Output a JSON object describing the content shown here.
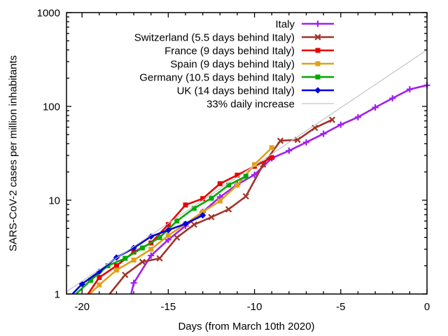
{
  "chart_data": {
    "type": "line",
    "title": "",
    "xlabel": "Days (from March 10th 2020)",
    "ylabel": "SARS-CoV-2 cases per million inhabitants",
    "x_scale": "linear",
    "y_scale": "log10",
    "xlim": [
      -20.9,
      0
    ],
    "ylim": [
      1,
      1000
    ],
    "x_major_ticks": [
      -20,
      -15,
      -10,
      -5,
      0
    ],
    "x_major_tick_labels": [
      "-20",
      "-15",
      "-10",
      "-5",
      "0"
    ],
    "x_minor_tick_interval": 1,
    "y_major_ticks": [
      1,
      10,
      100,
      1000
    ],
    "y_major_tick_labels": [
      "1",
      "10",
      "100",
      "1000"
    ],
    "y_minor_ticks": "log-decades-2-to-9",
    "grid": false,
    "legend_position": "top-right-inside",
    "background_color": "#ffffff",
    "axis_color": "#000000",
    "series": [
      {
        "name": "Italy",
        "color": "#a020f0",
        "marker": "plus",
        "line_width": 2.6,
        "axis_entry": [
          -17.15,
          1.0
        ],
        "points": [
          [
            -17,
            1.31
          ],
          [
            -16,
            2.57
          ],
          [
            -15,
            3.79
          ],
          [
            -14,
            5.33
          ],
          [
            -13,
            7.5
          ],
          [
            -12,
            10.8
          ],
          [
            -11,
            14.7
          ],
          [
            -10,
            18.7
          ],
          [
            -9,
            28.0
          ],
          [
            -8,
            33.7
          ],
          [
            -7,
            41.4
          ],
          [
            -6,
            51.1
          ],
          [
            -5,
            63.9
          ],
          [
            -4,
            76.8
          ],
          [
            -3,
            97.4
          ],
          [
            -2,
            122
          ],
          [
            -1,
            152
          ],
          [
            0,
            168
          ]
        ]
      },
      {
        "name": "Switzerland (5.5 days behind Italy)",
        "color": "#a13328",
        "marker": "x",
        "line_width": 2.6,
        "axis_entry": [
          -18.4,
          1.0
        ],
        "points": [
          [
            -17.5,
            1.6
          ],
          [
            -16.5,
            2.2
          ],
          [
            -15.5,
            2.4
          ],
          [
            -14.5,
            4.0
          ],
          [
            -13.5,
            5.5
          ],
          [
            -12.5,
            6.6
          ],
          [
            -11.5,
            8.0
          ],
          [
            -10.5,
            11
          ],
          [
            -9.5,
            24
          ],
          [
            -8.5,
            43
          ],
          [
            -7.5,
            44
          ],
          [
            -6.5,
            59
          ],
          [
            -5.5,
            72
          ]
        ]
      },
      {
        "name": "France (9 days behind Italy)",
        "color": "#e60000",
        "marker": "square",
        "line_width": 2.6,
        "axis_entry": [
          -19.65,
          1.0
        ],
        "points": [
          [
            -19,
            1.5
          ],
          [
            -18,
            2.0
          ],
          [
            -17,
            2.8
          ],
          [
            -16,
            3.5
          ],
          [
            -15,
            5.5
          ],
          [
            -14,
            8.9
          ],
          [
            -13,
            10.4
          ],
          [
            -12,
            15.0
          ],
          [
            -11,
            18.5
          ],
          [
            -10,
            23
          ],
          [
            -9,
            28.5
          ]
        ]
      },
      {
        "name": "Spain (9 days behind Italy)",
        "color": "#dfa118",
        "marker": "square",
        "line_width": 2.6,
        "axis_entry": [
          -19.55,
          1.0
        ],
        "points": [
          [
            -19,
            1.25
          ],
          [
            -18,
            1.8
          ],
          [
            -17,
            2.3
          ],
          [
            -16,
            3.0
          ],
          [
            -15,
            4.2
          ],
          [
            -14,
            5.6
          ],
          [
            -13,
            7.5
          ],
          [
            -12,
            9.8
          ],
          [
            -11,
            14.5
          ],
          [
            -10,
            24
          ],
          [
            -9,
            36.3
          ]
        ]
      },
      {
        "name": "Germany (10.5 days behind Italy)",
        "color": "#00a800",
        "marker": "square",
        "line_width": 2.6,
        "axis_entry": [
          -20.35,
          1.0
        ],
        "points": [
          [
            -19.5,
            1.4
          ],
          [
            -18.5,
            2.0
          ],
          [
            -17.5,
            2.4
          ],
          [
            -16.5,
            3.1
          ],
          [
            -15.5,
            4.0
          ],
          [
            -14.5,
            6.0
          ],
          [
            -13.5,
            8.2
          ],
          [
            -12.5,
            10.5
          ],
          [
            -11.5,
            14.5
          ],
          [
            -10.5,
            18
          ]
        ]
      },
      {
        "name": "UK (14 days behind Italy)",
        "color": "#0000e0",
        "marker": "diamond",
        "line_width": 2.6,
        "axis_entry": [
          -20.55,
          1.0
        ],
        "points": [
          [
            -20,
            1.28
          ],
          [
            -19,
            1.73
          ],
          [
            -18,
            2.45
          ],
          [
            -17,
            3.1
          ],
          [
            -16,
            4.1
          ],
          [
            -15,
            4.8
          ],
          [
            -14,
            5.6
          ],
          [
            -13,
            6.9
          ]
        ]
      },
      {
        "name": "33% daily increase",
        "color": "#c4c4c4",
        "marker": "none",
        "line_width": 1.2,
        "points": [
          [
            -20.9,
            1.06
          ],
          [
            0,
            400
          ]
        ]
      }
    ]
  }
}
